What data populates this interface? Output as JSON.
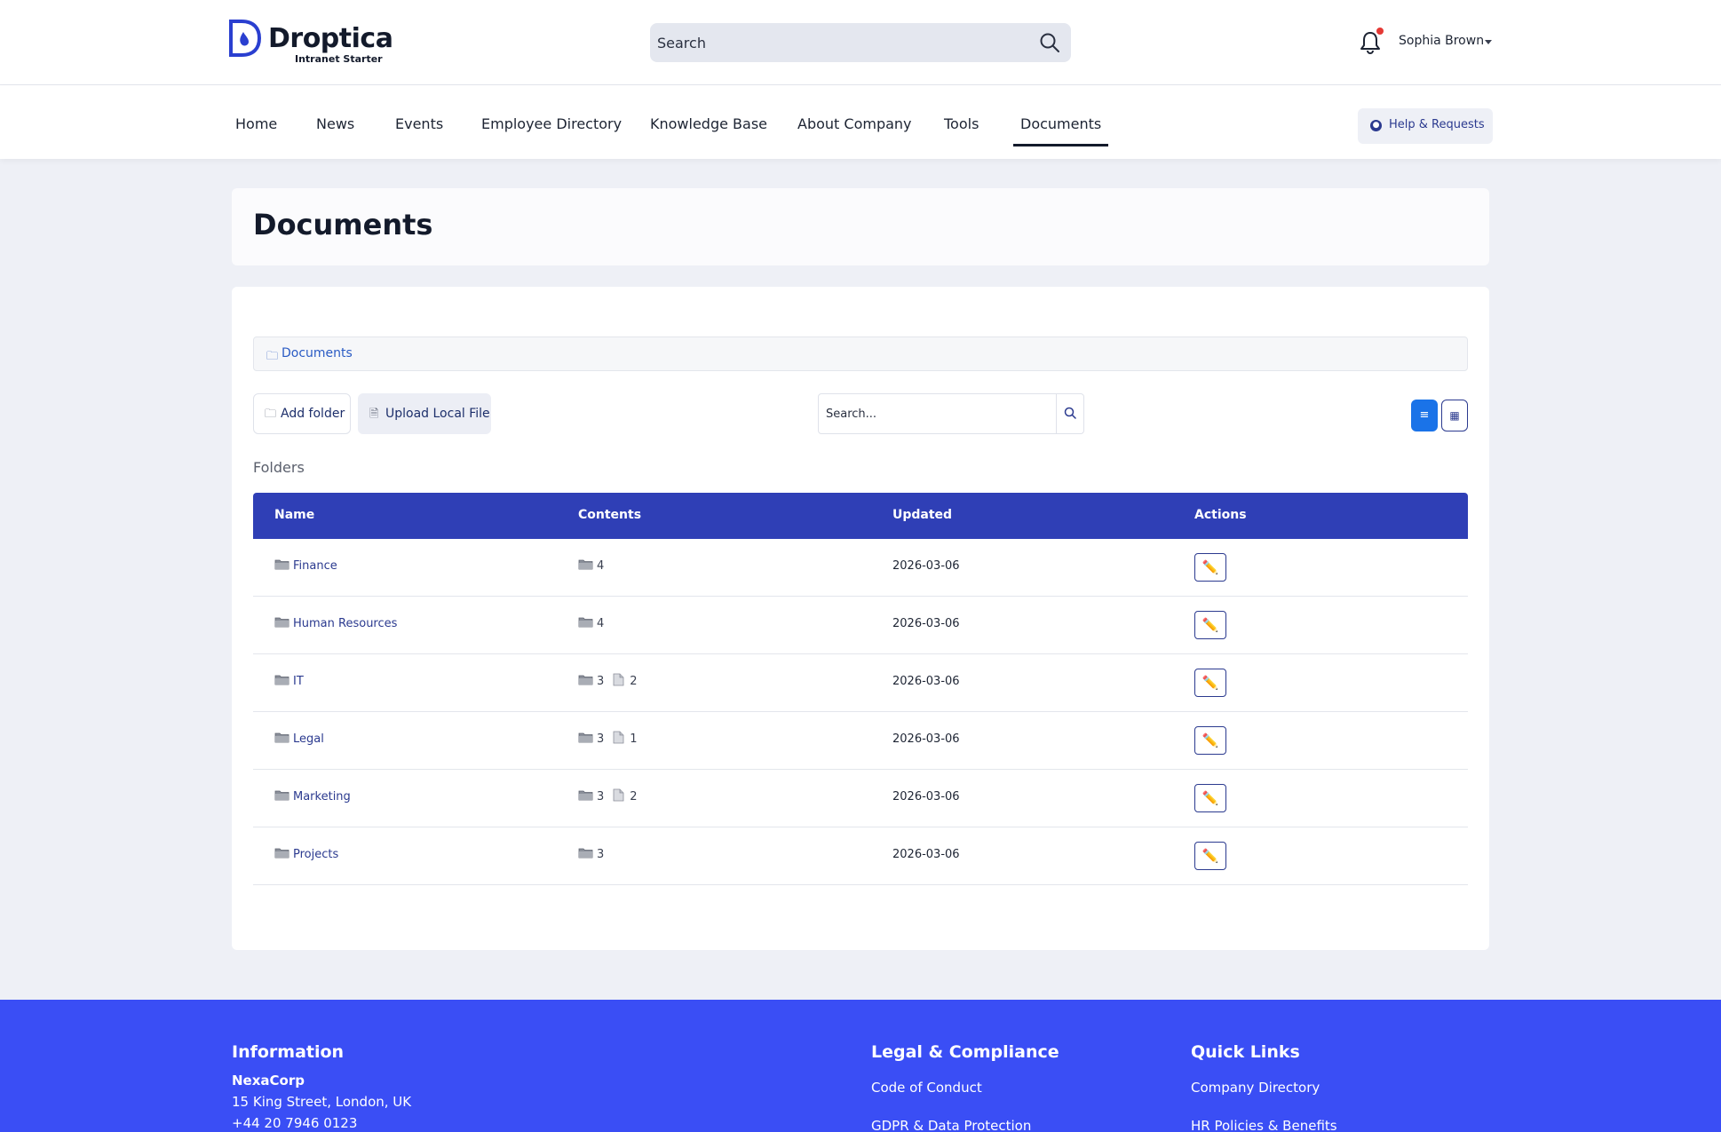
{
  "brand": {
    "name": "Droptica",
    "tagline": "Intranet Starter",
    "accent": "#3a4ef5"
  },
  "header": {
    "search_placeholder": "Search",
    "user_name": "Sophia Brown",
    "notification_dot": true
  },
  "nav": {
    "items": [
      {
        "label": "Home",
        "active": false
      },
      {
        "label": "News",
        "active": false
      },
      {
        "label": "Events",
        "active": false
      },
      {
        "label": "Employee Directory",
        "active": false
      },
      {
        "label": "Knowledge Base",
        "active": false
      },
      {
        "label": "About Company",
        "active": false
      },
      {
        "label": "Tools",
        "active": false
      },
      {
        "label": "Documents",
        "active": true
      }
    ],
    "help_label": "Help & Requests"
  },
  "page": {
    "title": "Documents",
    "breadcrumb": "Documents"
  },
  "toolbar": {
    "add_folder_label": "Add folder",
    "upload_label": "Upload Local File",
    "search_placeholder": "Search...",
    "view_list_icon": "≡",
    "view_grid_icon": "▦",
    "active_view": "list"
  },
  "folders": {
    "heading": "Folders",
    "columns": [
      "Name",
      "Contents",
      "Updated",
      "Actions"
    ],
    "rows": [
      {
        "name": "Finance",
        "folders": "4",
        "files": "",
        "updated": "2026-03-06",
        "action_icon": "✏️"
      },
      {
        "name": "Human Resources",
        "folders": "4",
        "files": "",
        "updated": "2026-03-06",
        "action_icon": "✏️"
      },
      {
        "name": "IT",
        "folders": "3",
        "files": "2",
        "updated": "2026-03-06",
        "action_icon": "✏️"
      },
      {
        "name": "Legal",
        "folders": "3",
        "files": "1",
        "updated": "2026-03-06",
        "action_icon": "✏️"
      },
      {
        "name": "Marketing",
        "folders": "3",
        "files": "2",
        "updated": "2026-03-06",
        "action_icon": "✏️"
      },
      {
        "name": "Projects",
        "folders": "3",
        "files": "",
        "updated": "2026-03-06",
        "action_icon": "✏️"
      }
    ]
  },
  "footer": {
    "information": {
      "heading": "Information",
      "company": "NexaCorp",
      "address": "15 King Street, London, UK",
      "phone": "+44 20 7946 0123"
    },
    "legal": {
      "heading": "Legal & Compliance",
      "links": [
        "Code of Conduct",
        "GDPR & Data Protection"
      ]
    },
    "quick_links": {
      "heading": "Quick Links",
      "links": [
        "Company Directory",
        "HR Policies & Benefits"
      ]
    }
  }
}
